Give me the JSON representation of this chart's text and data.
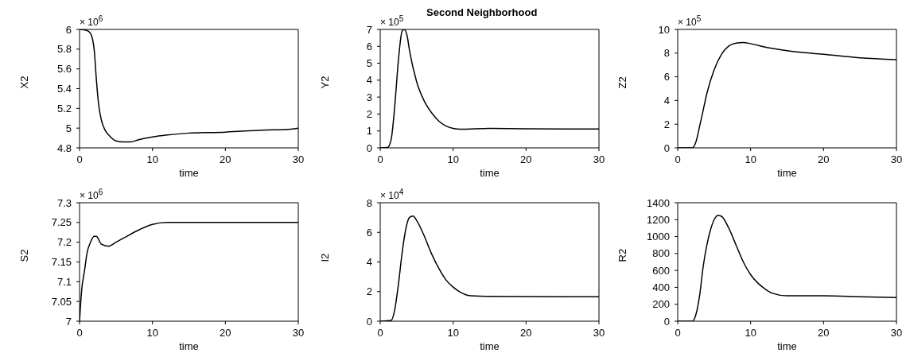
{
  "chart_data": [
    {
      "type": "line",
      "xlabel": "time",
      "ylabel": "X2",
      "annotations": [
        "× 10$^{6}$"
      ],
      "xlim": [
        0,
        30
      ],
      "xticks": [
        0,
        10,
        20,
        30
      ],
      "ylim": [
        4.8,
        6
      ],
      "yticks": [
        4.8,
        5,
        5.2,
        5.4,
        5.6,
        5.8,
        6
      ],
      "color": "#000000",
      "x": [
        0,
        1,
        1.5,
        2,
        2.3,
        2.6,
        3,
        3.5,
        4,
        5,
        6,
        7,
        8,
        10,
        12,
        15,
        20,
        25,
        29,
        30
      ],
      "values": [
        6.0,
        5.99,
        5.96,
        5.8,
        5.5,
        5.25,
        5.08,
        4.98,
        4.93,
        4.87,
        4.86,
        4.86,
        4.88,
        4.91,
        4.93,
        4.95,
        4.96,
        4.98,
        4.99,
        5.0
      ]
    },
    {
      "type": "line",
      "title": "Second Neighborhood",
      "xlabel": "time",
      "ylabel": "Y2",
      "annotations": [
        "× 10$^{5}$"
      ],
      "xlim": [
        0,
        30
      ],
      "xticks": [
        0,
        10,
        20,
        30
      ],
      "ylim": [
        0,
        7
      ],
      "yticks": [
        0,
        1,
        2,
        3,
        4,
        5,
        6,
        7
      ],
      "color": "#000000",
      "x": [
        0,
        1,
        1.5,
        2,
        2.5,
        3,
        3.3,
        3.7,
        4,
        5,
        6,
        7,
        8,
        9,
        10,
        11,
        15,
        20,
        25,
        30
      ],
      "values": [
        0,
        0.02,
        0.5,
        2.5,
        5.2,
        6.9,
        7.0,
        6.6,
        5.8,
        3.9,
        2.8,
        2.1,
        1.6,
        1.3,
        1.15,
        1.1,
        1.15,
        1.13,
        1.12,
        1.12
      ]
    },
    {
      "type": "line",
      "xlabel": "time",
      "ylabel": "Z2",
      "annotations": [
        "× 10$^{5}$"
      ],
      "xlim": [
        0,
        30
      ],
      "xticks": [
        0,
        10,
        20,
        30
      ],
      "ylim": [
        0,
        10
      ],
      "yticks": [
        0,
        2,
        4,
        6,
        8,
        10
      ],
      "color": "#000000",
      "x": [
        0,
        2,
        2.5,
        3,
        3.5,
        4,
        5,
        6,
        7,
        8,
        9,
        10,
        12,
        15,
        20,
        25,
        30
      ],
      "values": [
        0,
        0,
        0.5,
        1.8,
        3.2,
        4.6,
        6.6,
        7.9,
        8.6,
        8.85,
        8.9,
        8.8,
        8.5,
        8.2,
        7.9,
        7.6,
        7.45
      ]
    },
    {
      "type": "line",
      "xlabel": "time",
      "ylabel": "S2",
      "annotations": [
        "× 10$^{6}$"
      ],
      "xlim": [
        0,
        30
      ],
      "xticks": [
        0,
        10,
        20,
        30
      ],
      "ylim": [
        7,
        7.3
      ],
      "yticks": [
        7,
        7.05,
        7.1,
        7.15,
        7.2,
        7.25,
        7.3
      ],
      "color": "#000000",
      "x": [
        0,
        0.3,
        0.7,
        1,
        1.5,
        2,
        2.3,
        3,
        4,
        5,
        6,
        8,
        10,
        12,
        15,
        20,
        30
      ],
      "values": [
        7.0,
        7.08,
        7.13,
        7.17,
        7.2,
        7.215,
        7.215,
        7.195,
        7.19,
        7.2,
        7.21,
        7.23,
        7.245,
        7.25,
        7.25,
        7.25,
        7.25
      ]
    },
    {
      "type": "line",
      "xlabel": "time",
      "ylabel": "I2",
      "annotations": [
        "× 10$^{4}$"
      ],
      "xlim": [
        0,
        30
      ],
      "xticks": [
        0,
        10,
        20,
        30
      ],
      "ylim": [
        0,
        8
      ],
      "yticks": [
        0,
        2,
        4,
        6,
        8
      ],
      "color": "#000000",
      "x": [
        0,
        1.5,
        2,
        2.5,
        3,
        3.5,
        4,
        4.5,
        5,
        6,
        7,
        8,
        9,
        10,
        11,
        12,
        13,
        15,
        20,
        30
      ],
      "values": [
        0,
        0.05,
        0.8,
        2.5,
        4.6,
        6.2,
        7.0,
        7.1,
        6.8,
        5.8,
        4.6,
        3.6,
        2.8,
        2.3,
        1.95,
        1.75,
        1.7,
        1.68,
        1.66,
        1.65
      ]
    },
    {
      "type": "line",
      "xlabel": "time",
      "ylabel": "R2",
      "xlim": [
        0,
        30
      ],
      "xticks": [
        0,
        10,
        20,
        30
      ],
      "ylim": [
        0,
        1400
      ],
      "yticks": [
        0,
        200,
        400,
        600,
        800,
        1000,
        1200,
        1400
      ],
      "color": "#000000",
      "x": [
        0,
        2,
        2.5,
        3,
        3.5,
        4,
        4.5,
        5,
        5.5,
        6,
        7,
        8,
        9,
        10,
        11,
        12,
        13,
        15,
        20,
        25,
        30
      ],
      "values": [
        0,
        0,
        80,
        300,
        650,
        900,
        1080,
        1200,
        1250,
        1240,
        1100,
        900,
        700,
        550,
        450,
        380,
        330,
        300,
        300,
        290,
        280
      ]
    }
  ]
}
